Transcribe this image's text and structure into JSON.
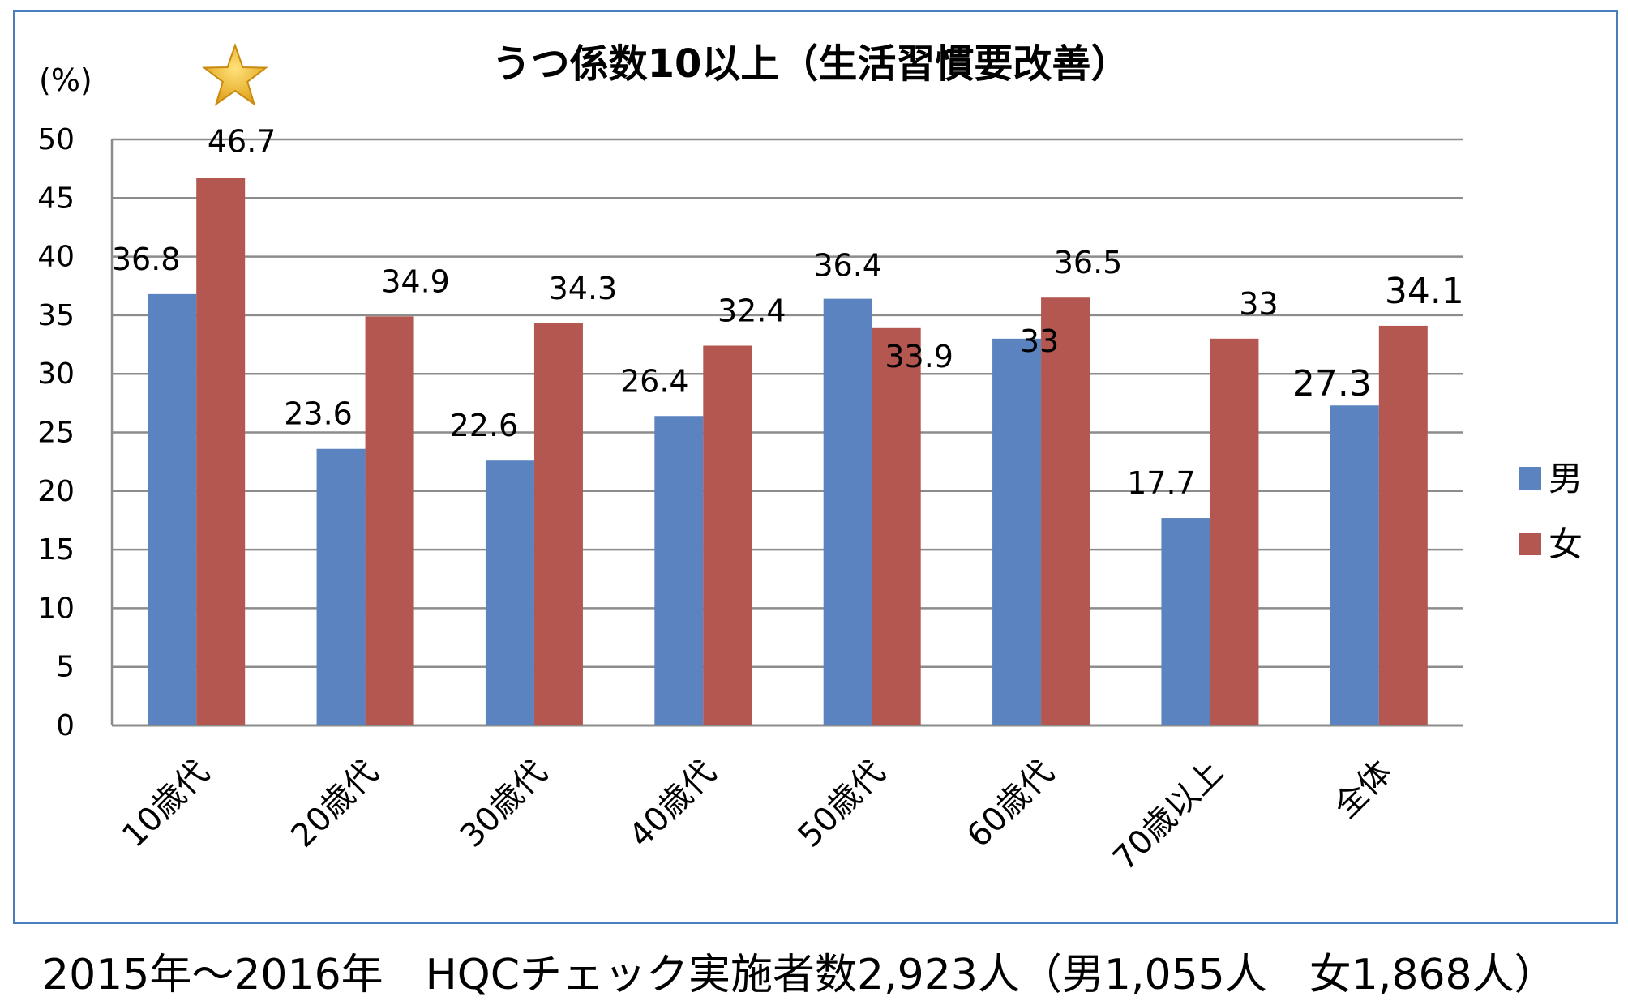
{
  "chart_data": {
    "type": "bar",
    "title": "うつ係数10以上（生活習慣要改善）",
    "ylabel": "(%)",
    "xlabel": "",
    "categories": [
      "10歳代",
      "20歳代",
      "30歳代",
      "40歳代",
      "50歳代",
      "60歳代",
      "70歳以上",
      "全体"
    ],
    "series": [
      {
        "name": "男",
        "color": "#5b83bf",
        "values": [
          36.8,
          23.6,
          22.6,
          26.4,
          36.4,
          33,
          17.7,
          27.3
        ],
        "labels": [
          "36.8",
          "23.6",
          "22.6",
          "26.4",
          "36.4",
          "33",
          "17.7",
          "27.3"
        ]
      },
      {
        "name": "女",
        "color": "#b35750",
        "values": [
          46.7,
          34.9,
          34.3,
          32.4,
          33.9,
          36.5,
          33,
          34.1
        ],
        "labels": [
          "46.7",
          "34.9",
          "34.3",
          "32.4",
          "33.9",
          "36.5",
          "33",
          "34.1"
        ]
      }
    ],
    "ylim": [
      0,
      50
    ],
    "yticks": [
      0,
      5,
      10,
      15,
      20,
      25,
      30,
      35,
      40,
      45,
      50
    ],
    "grid": true,
    "legend_position": "right",
    "annotation_icon": "star-icon"
  },
  "footer": {
    "note": "2015年～2016年　HQCチェック実施者数2,923人（男1,055人　女1,868人）"
  }
}
